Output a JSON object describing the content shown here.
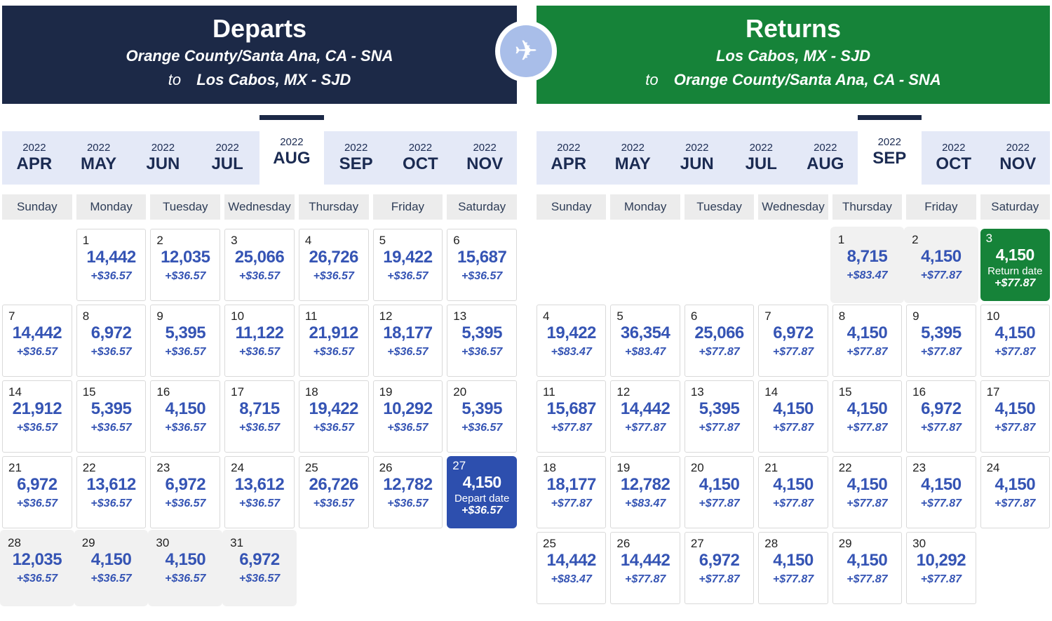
{
  "colors": {
    "header_navy": "#1c2947",
    "header_green": "#168339",
    "selected_depart_blue": "#2d4fae",
    "selected_return_green": "#168339",
    "points_blue": "#3554b4",
    "tab_background": "#e4e9f7",
    "muted_cell_background": "#f1f1f1",
    "plane_badge_blue": "#a9bee9"
  },
  "plane_icon": "airplane",
  "day_headers": [
    "Sunday",
    "Monday",
    "Tuesday",
    "Wednesday",
    "Thursday",
    "Friday",
    "Saturday"
  ],
  "panels": [
    {
      "id": "depart",
      "title": "Departs",
      "route_from": "Orange County/Santa Ana, CA - SNA",
      "to_word": "to",
      "route_to": "Los Cabos, MX - SJD",
      "theme": "navy",
      "tabs": [
        {
          "year": "2022",
          "month": "APR",
          "selected": false
        },
        {
          "year": "2022",
          "month": "MAY",
          "selected": false
        },
        {
          "year": "2022",
          "month": "JUN",
          "selected": false
        },
        {
          "year": "2022",
          "month": "JUL",
          "selected": false
        },
        {
          "year": "2022",
          "month": "AUG",
          "selected": true
        },
        {
          "year": "2022",
          "month": "SEP",
          "selected": false
        },
        {
          "year": "2022",
          "month": "OCT",
          "selected": false
        },
        {
          "year": "2022",
          "month": "NOV",
          "selected": false
        }
      ],
      "weeks": [
        [
          null,
          {
            "day": "1",
            "points": "14,442",
            "tax": "+$36.57",
            "state": "normal"
          },
          {
            "day": "2",
            "points": "12,035",
            "tax": "+$36.57",
            "state": "normal"
          },
          {
            "day": "3",
            "points": "25,066",
            "tax": "+$36.57",
            "state": "normal"
          },
          {
            "day": "4",
            "points": "26,726",
            "tax": "+$36.57",
            "state": "normal"
          },
          {
            "day": "5",
            "points": "19,422",
            "tax": "+$36.57",
            "state": "normal"
          },
          {
            "day": "6",
            "points": "15,687",
            "tax": "+$36.57",
            "state": "normal"
          }
        ],
        [
          {
            "day": "7",
            "points": "14,442",
            "tax": "+$36.57",
            "state": "normal"
          },
          {
            "day": "8",
            "points": "6,972",
            "tax": "+$36.57",
            "state": "normal"
          },
          {
            "day": "9",
            "points": "5,395",
            "tax": "+$36.57",
            "state": "normal"
          },
          {
            "day": "10",
            "points": "11,122",
            "tax": "+$36.57",
            "state": "normal"
          },
          {
            "day": "11",
            "points": "21,912",
            "tax": "+$36.57",
            "state": "normal"
          },
          {
            "day": "12",
            "points": "18,177",
            "tax": "+$36.57",
            "state": "normal"
          },
          {
            "day": "13",
            "points": "5,395",
            "tax": "+$36.57",
            "state": "normal"
          }
        ],
        [
          {
            "day": "14",
            "points": "21,912",
            "tax": "+$36.57",
            "state": "normal"
          },
          {
            "day": "15",
            "points": "5,395",
            "tax": "+$36.57",
            "state": "normal"
          },
          {
            "day": "16",
            "points": "4,150",
            "tax": "+$36.57",
            "state": "normal"
          },
          {
            "day": "17",
            "points": "8,715",
            "tax": "+$36.57",
            "state": "normal"
          },
          {
            "day": "18",
            "points": "19,422",
            "tax": "+$36.57",
            "state": "normal"
          },
          {
            "day": "19",
            "points": "10,292",
            "tax": "+$36.57",
            "state": "normal"
          },
          {
            "day": "20",
            "points": "5,395",
            "tax": "+$36.57",
            "state": "normal"
          }
        ],
        [
          {
            "day": "21",
            "points": "6,972",
            "tax": "+$36.57",
            "state": "normal"
          },
          {
            "day": "22",
            "points": "13,612",
            "tax": "+$36.57",
            "state": "normal"
          },
          {
            "day": "23",
            "points": "6,972",
            "tax": "+$36.57",
            "state": "normal"
          },
          {
            "day": "24",
            "points": "13,612",
            "tax": "+$36.57",
            "state": "normal"
          },
          {
            "day": "25",
            "points": "26,726",
            "tax": "+$36.57",
            "state": "normal"
          },
          {
            "day": "26",
            "points": "12,782",
            "tax": "+$36.57",
            "state": "normal"
          },
          {
            "day": "27",
            "points": "4,150",
            "tax": "+$36.57",
            "state": "selected",
            "label": "Depart date"
          }
        ],
        [
          {
            "day": "28",
            "points": "12,035",
            "tax": "+$36.57",
            "state": "muted"
          },
          {
            "day": "29",
            "points": "4,150",
            "tax": "+$36.57",
            "state": "muted"
          },
          {
            "day": "30",
            "points": "4,150",
            "tax": "+$36.57",
            "state": "muted"
          },
          {
            "day": "31",
            "points": "6,972",
            "tax": "+$36.57",
            "state": "muted"
          },
          null,
          null,
          null
        ]
      ]
    },
    {
      "id": "return",
      "title": "Returns",
      "route_from": "Los Cabos, MX - SJD",
      "to_word": "to",
      "route_to": "Orange County/Santa Ana, CA - SNA",
      "theme": "green",
      "tabs": [
        {
          "year": "2022",
          "month": "APR",
          "selected": false
        },
        {
          "year": "2022",
          "month": "MAY",
          "selected": false
        },
        {
          "year": "2022",
          "month": "JUN",
          "selected": false
        },
        {
          "year": "2022",
          "month": "JUL",
          "selected": false
        },
        {
          "year": "2022",
          "month": "AUG",
          "selected": false
        },
        {
          "year": "2022",
          "month": "SEP",
          "selected": true
        },
        {
          "year": "2022",
          "month": "OCT",
          "selected": false
        },
        {
          "year": "2022",
          "month": "NOV",
          "selected": false
        }
      ],
      "weeks": [
        [
          null,
          null,
          null,
          null,
          {
            "day": "1",
            "points": "8,715",
            "tax": "+$83.47",
            "state": "muted"
          },
          {
            "day": "2",
            "points": "4,150",
            "tax": "+$77.87",
            "state": "muted"
          },
          {
            "day": "3",
            "points": "4,150",
            "tax": "+$77.87",
            "state": "selected",
            "label": "Return date"
          }
        ],
        [
          {
            "day": "4",
            "points": "19,422",
            "tax": "+$83.47",
            "state": "normal"
          },
          {
            "day": "5",
            "points": "36,354",
            "tax": "+$83.47",
            "state": "normal"
          },
          {
            "day": "6",
            "points": "25,066",
            "tax": "+$77.87",
            "state": "normal"
          },
          {
            "day": "7",
            "points": "6,972",
            "tax": "+$77.87",
            "state": "normal"
          },
          {
            "day": "8",
            "points": "4,150",
            "tax": "+$77.87",
            "state": "normal"
          },
          {
            "day": "9",
            "points": "5,395",
            "tax": "+$77.87",
            "state": "normal"
          },
          {
            "day": "10",
            "points": "4,150",
            "tax": "+$77.87",
            "state": "normal"
          }
        ],
        [
          {
            "day": "11",
            "points": "15,687",
            "tax": "+$77.87",
            "state": "normal"
          },
          {
            "day": "12",
            "points": "14,442",
            "tax": "+$77.87",
            "state": "normal"
          },
          {
            "day": "13",
            "points": "5,395",
            "tax": "+$77.87",
            "state": "normal"
          },
          {
            "day": "14",
            "points": "4,150",
            "tax": "+$77.87",
            "state": "normal"
          },
          {
            "day": "15",
            "points": "4,150",
            "tax": "+$77.87",
            "state": "normal"
          },
          {
            "day": "16",
            "points": "6,972",
            "tax": "+$77.87",
            "state": "normal"
          },
          {
            "day": "17",
            "points": "4,150",
            "tax": "+$77.87",
            "state": "normal"
          }
        ],
        [
          {
            "day": "18",
            "points": "18,177",
            "tax": "+$77.87",
            "state": "normal"
          },
          {
            "day": "19",
            "points": "12,782",
            "tax": "+$83.47",
            "state": "normal"
          },
          {
            "day": "20",
            "points": "4,150",
            "tax": "+$77.87",
            "state": "normal"
          },
          {
            "day": "21",
            "points": "4,150",
            "tax": "+$77.87",
            "state": "normal"
          },
          {
            "day": "22",
            "points": "4,150",
            "tax": "+$77.87",
            "state": "normal"
          },
          {
            "day": "23",
            "points": "4,150",
            "tax": "+$77.87",
            "state": "normal"
          },
          {
            "day": "24",
            "points": "4,150",
            "tax": "+$77.87",
            "state": "normal"
          }
        ],
        [
          {
            "day": "25",
            "points": "14,442",
            "tax": "+$83.47",
            "state": "normal"
          },
          {
            "day": "26",
            "points": "14,442",
            "tax": "+$77.87",
            "state": "normal"
          },
          {
            "day": "27",
            "points": "6,972",
            "tax": "+$77.87",
            "state": "normal"
          },
          {
            "day": "28",
            "points": "4,150",
            "tax": "+$77.87",
            "state": "normal"
          },
          {
            "day": "29",
            "points": "4,150",
            "tax": "+$77.87",
            "state": "normal"
          },
          {
            "day": "30",
            "points": "10,292",
            "tax": "+$77.87",
            "state": "normal"
          },
          null
        ]
      ]
    }
  ]
}
